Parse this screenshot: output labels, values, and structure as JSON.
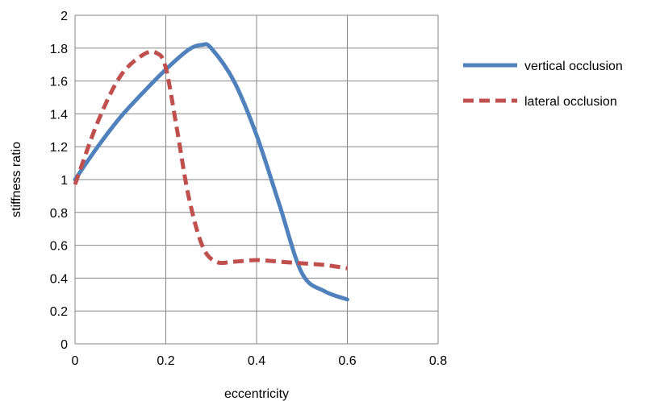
{
  "chart_data": {
    "type": "line",
    "xlabel": "eccentricity",
    "ylabel": "stiffness ratio",
    "xlim": [
      0,
      0.8
    ],
    "ylim": [
      0,
      2
    ],
    "x_ticks": [
      "0",
      "0.2",
      "0.4",
      "0.6",
      "0.8"
    ],
    "y_ticks": [
      "0",
      "0.2",
      "0.4",
      "0.6",
      "0.8",
      "1",
      "1.2",
      "1.4",
      "1.6",
      "1.8",
      "2"
    ],
    "grid": true,
    "legend_position": "right",
    "series": [
      {
        "name": "vertical occlusion",
        "color": "#4f81bd",
        "dash": "solid",
        "x": [
          0,
          0.05,
          0.1,
          0.15,
          0.2,
          0.25,
          0.28,
          0.3,
          0.35,
          0.4,
          0.45,
          0.5,
          0.55,
          0.6
        ],
        "y": [
          1.0,
          1.2,
          1.38,
          1.53,
          1.67,
          1.79,
          1.82,
          1.8,
          1.6,
          1.27,
          0.85,
          0.43,
          0.32,
          0.27
        ]
      },
      {
        "name": "lateral occlusion",
        "color": "#c0504d",
        "dash": "dashed",
        "x": [
          0,
          0.05,
          0.1,
          0.15,
          0.18,
          0.2,
          0.225,
          0.25,
          0.28,
          0.31,
          0.35,
          0.4,
          0.45,
          0.5,
          0.55,
          0.6
        ],
        "y": [
          0.97,
          1.35,
          1.63,
          1.76,
          1.77,
          1.68,
          1.3,
          0.9,
          0.6,
          0.5,
          0.5,
          0.51,
          0.5,
          0.49,
          0.48,
          0.46
        ]
      }
    ]
  }
}
